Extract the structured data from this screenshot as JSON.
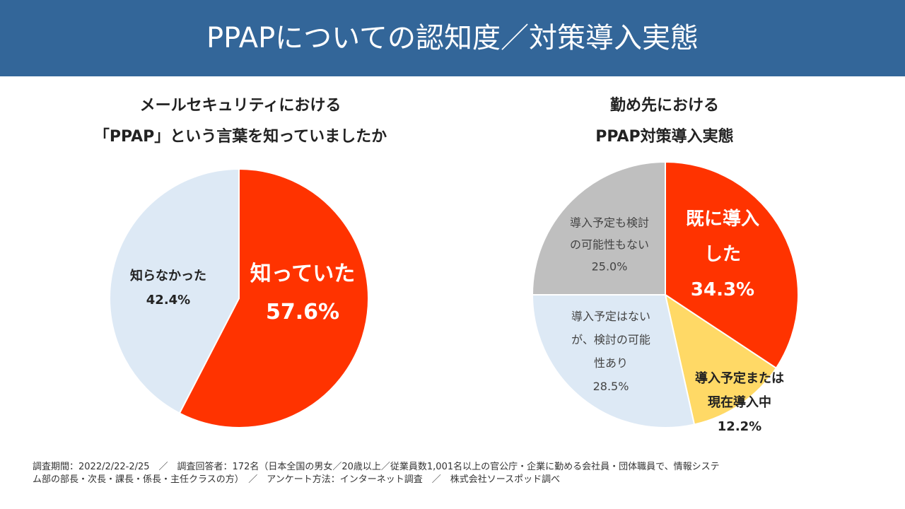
{
  "header": {
    "title": "PPAPについての認知度／対策導入実態"
  },
  "chart_data": [
    {
      "type": "pie",
      "title_lines": [
        "メールセキュリティにおける",
        "「PPAP」という言葉を知っていましたか"
      ],
      "slices": [
        {
          "label": "知っていた",
          "value": 57.6,
          "value_text": "57.6%",
          "color": "#ff3300"
        },
        {
          "label": "知らなかった",
          "value": 42.4,
          "value_text": "42.4%",
          "color": "#dde9f5"
        }
      ]
    },
    {
      "type": "pie",
      "title_lines": [
        "勤め先における",
        "PPAP対策導入実態"
      ],
      "slices": [
        {
          "label_lines": [
            "既に導入",
            "した"
          ],
          "value": 34.3,
          "value_text": "34.3%",
          "color": "#ff3300"
        },
        {
          "label_lines": [
            "導入予定または",
            "現在導入中"
          ],
          "value": 12.2,
          "value_text": "12.2%",
          "color": "#ffd966"
        },
        {
          "label_lines": [
            "導入予定はない",
            "が、検討の可能",
            "性あり"
          ],
          "value": 28.5,
          "value_text": "28.5%",
          "color": "#dde9f5"
        },
        {
          "label_lines": [
            "導入予定も検討",
            "の可能性もない"
          ],
          "value": 25.0,
          "value_text": "25.0%",
          "color": "#bfbfbf"
        }
      ]
    }
  ],
  "footer": {
    "line1": "調査期間：2022/2/22-2/25　／　調査回答者：172名（日本全国の男女／20歳以上／従業員数1,001名以上の官公庁・企業に勤める会社員・団体職員で、情報システ",
    "line2": "ム部の部長・次長・課長・係長・主任クラスの方）　／　アンケート方法：インターネット調査　／　株式会社ソースポッド調べ"
  }
}
